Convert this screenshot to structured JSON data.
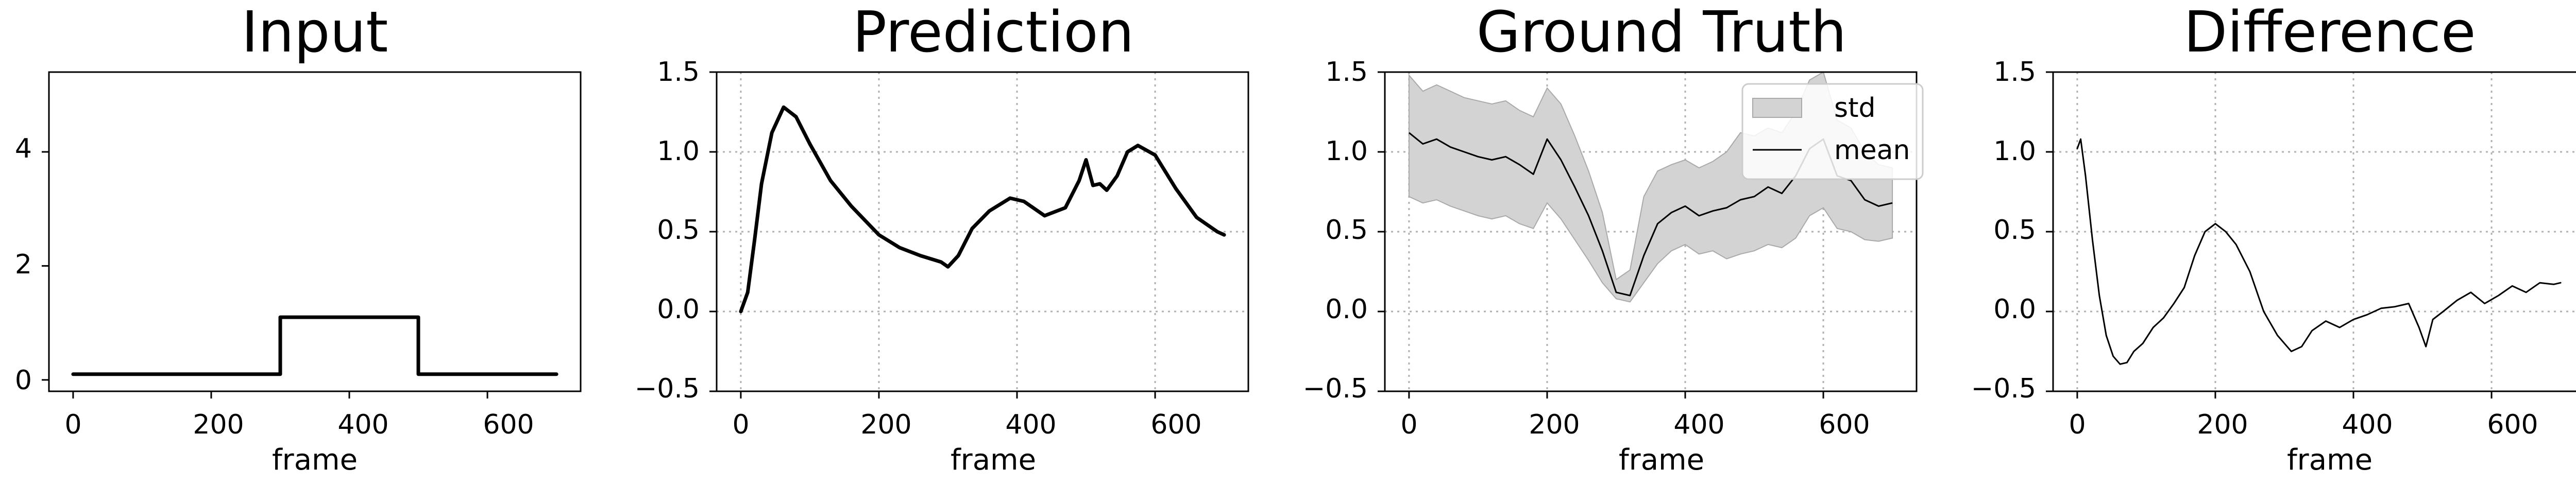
{
  "chart_data": [
    {
      "type": "line",
      "title": "Input",
      "xlabel": "frame",
      "ylabel": "",
      "xlim": [
        -35,
        735
      ],
      "ylim": [
        -0.2,
        5.4
      ],
      "xticks": [
        0,
        200,
        400,
        600
      ],
      "yticks": [
        0,
        2,
        4
      ],
      "grid": false,
      "series": [
        {
          "values": [
            [
              0,
              0.1
            ],
            [
              300,
              0.1
            ],
            [
              300,
              1.1
            ],
            [
              500,
              1.1
            ],
            [
              500,
              0.1
            ],
            [
              700,
              0.1
            ]
          ]
        }
      ]
    },
    {
      "type": "line",
      "title": "Prediction",
      "xlabel": "frame",
      "ylabel": "",
      "xlim": [
        -35,
        735
      ],
      "ylim": [
        -0.5,
        1.5
      ],
      "xticks": [
        0,
        200,
        400,
        600
      ],
      "yticks": [
        -0.5,
        0.0,
        0.5,
        1.0,
        1.5
      ],
      "grid": true,
      "series": [
        {
          "values": [
            [
              0,
              0.0
            ],
            [
              10,
              0.12
            ],
            [
              20,
              0.45
            ],
            [
              30,
              0.8
            ],
            [
              45,
              1.12
            ],
            [
              62,
              1.28
            ],
            [
              80,
              1.22
            ],
            [
              100,
              1.05
            ],
            [
              130,
              0.82
            ],
            [
              160,
              0.66
            ],
            [
              200,
              0.48
            ],
            [
              230,
              0.4
            ],
            [
              260,
              0.35
            ],
            [
              290,
              0.31
            ],
            [
              300,
              0.28
            ],
            [
              315,
              0.35
            ],
            [
              335,
              0.52
            ],
            [
              360,
              0.63
            ],
            [
              390,
              0.71
            ],
            [
              410,
              0.69
            ],
            [
              440,
              0.6
            ],
            [
              470,
              0.65
            ],
            [
              490,
              0.82
            ],
            [
              500,
              0.95
            ],
            [
              510,
              0.79
            ],
            [
              520,
              0.8
            ],
            [
              530,
              0.76
            ],
            [
              545,
              0.85
            ],
            [
              560,
              1.0
            ],
            [
              575,
              1.04
            ],
            [
              600,
              0.98
            ],
            [
              630,
              0.77
            ],
            [
              660,
              0.59
            ],
            [
              690,
              0.5
            ],
            [
              700,
              0.48
            ]
          ]
        }
      ]
    },
    {
      "type": "area",
      "title": "Ground Truth",
      "xlabel": "frame",
      "ylabel": "",
      "xlim": [
        -35,
        735
      ],
      "ylim": [
        -0.5,
        1.5
      ],
      "xticks": [
        0,
        200,
        400,
        600
      ],
      "yticks": [
        -0.5,
        0.0,
        0.5,
        1.0,
        1.5
      ],
      "grid": true,
      "legend": "top-right",
      "x": [
        0,
        20,
        40,
        60,
        80,
        100,
        120,
        140,
        160,
        180,
        200,
        220,
        240,
        260,
        280,
        300,
        320,
        340,
        360,
        380,
        400,
        420,
        440,
        460,
        480,
        500,
        520,
        540,
        560,
        580,
        600,
        620,
        640,
        660,
        680,
        700
      ],
      "series": [
        {
          "name": "mean",
          "values": [
            1.12,
            1.05,
            1.08,
            1.03,
            1.0,
            0.97,
            0.95,
            0.97,
            0.92,
            0.86,
            1.08,
            0.95,
            0.78,
            0.6,
            0.38,
            0.12,
            0.1,
            0.35,
            0.55,
            0.62,
            0.66,
            0.6,
            0.63,
            0.65,
            0.7,
            0.72,
            0.78,
            0.74,
            0.85,
            1.02,
            1.08,
            0.85,
            0.82,
            0.7,
            0.66,
            0.68
          ]
        },
        {
          "name": "std",
          "lower": [
            0.72,
            0.68,
            0.7,
            0.66,
            0.63,
            0.6,
            0.58,
            0.6,
            0.55,
            0.52,
            0.68,
            0.58,
            0.45,
            0.32,
            0.18,
            0.08,
            0.06,
            0.18,
            0.3,
            0.38,
            0.42,
            0.36,
            0.38,
            0.33,
            0.36,
            0.38,
            0.42,
            0.4,
            0.46,
            0.6,
            0.65,
            0.52,
            0.5,
            0.45,
            0.44,
            0.46
          ],
          "upper": [
            1.48,
            1.38,
            1.42,
            1.38,
            1.34,
            1.32,
            1.3,
            1.32,
            1.26,
            1.22,
            1.4,
            1.3,
            1.1,
            0.88,
            0.62,
            0.2,
            0.26,
            0.72,
            0.88,
            0.92,
            0.95,
            0.9,
            0.94,
            1.0,
            1.12,
            1.1,
            1.15,
            1.12,
            1.25,
            1.45,
            1.5,
            1.2,
            1.15,
            1.0,
            0.92,
            0.9
          ]
        }
      ]
    },
    {
      "type": "line",
      "title": "Difference",
      "xlabel": "frame",
      "ylabel": "",
      "xlim": [
        -35,
        735
      ],
      "ylim": [
        -0.5,
        1.5
      ],
      "xticks": [
        0,
        200,
        400,
        600
      ],
      "yticks": [
        -0.5,
        0.0,
        0.5,
        1.0,
        1.5
      ],
      "grid": true,
      "series": [
        {
          "values": [
            [
              0,
              1.02
            ],
            [
              5,
              1.08
            ],
            [
              12,
              0.85
            ],
            [
              22,
              0.45
            ],
            [
              32,
              0.1
            ],
            [
              42,
              -0.15
            ],
            [
              52,
              -0.28
            ],
            [
              62,
              -0.33
            ],
            [
              72,
              -0.32
            ],
            [
              82,
              -0.25
            ],
            [
              95,
              -0.2
            ],
            [
              110,
              -0.1
            ],
            [
              125,
              -0.04
            ],
            [
              140,
              0.05
            ],
            [
              155,
              0.15
            ],
            [
              170,
              0.35
            ],
            [
              185,
              0.5
            ],
            [
              200,
              0.55
            ],
            [
              215,
              0.5
            ],
            [
              230,
              0.42
            ],
            [
              250,
              0.25
            ],
            [
              270,
              0.0
            ],
            [
              290,
              -0.15
            ],
            [
              310,
              -0.25
            ],
            [
              325,
              -0.22
            ],
            [
              340,
              -0.12
            ],
            [
              360,
              -0.06
            ],
            [
              380,
              -0.1
            ],
            [
              400,
              -0.05
            ],
            [
              420,
              -0.02
            ],
            [
              440,
              0.02
            ],
            [
              460,
              0.03
            ],
            [
              480,
              0.05
            ],
            [
              495,
              -0.1
            ],
            [
              505,
              -0.22
            ],
            [
              515,
              -0.05
            ],
            [
              530,
              0.0
            ],
            [
              550,
              0.07
            ],
            [
              570,
              0.12
            ],
            [
              590,
              0.05
            ],
            [
              610,
              0.1
            ],
            [
              630,
              0.16
            ],
            [
              650,
              0.12
            ],
            [
              670,
              0.18
            ],
            [
              690,
              0.17
            ],
            [
              700,
              0.18
            ]
          ]
        }
      ]
    }
  ],
  "labels": {
    "panel_titles": [
      "Input",
      "Prediction",
      "Ground Truth",
      "Difference"
    ],
    "xlabel": "frame",
    "legend_std": "std",
    "legend_mean": "mean",
    "input_yticks": [
      "0",
      "2",
      "4"
    ],
    "yticks": [
      "−0.5",
      "0.0",
      "0.5",
      "1.0",
      "1.5"
    ],
    "xticks": [
      "0",
      "200",
      "400",
      "600"
    ]
  },
  "colors": {
    "line": "#000000",
    "std_fill": "#d3d3d3",
    "std_edge": "#a9a9a9",
    "grid": "#b0b0b0"
  }
}
